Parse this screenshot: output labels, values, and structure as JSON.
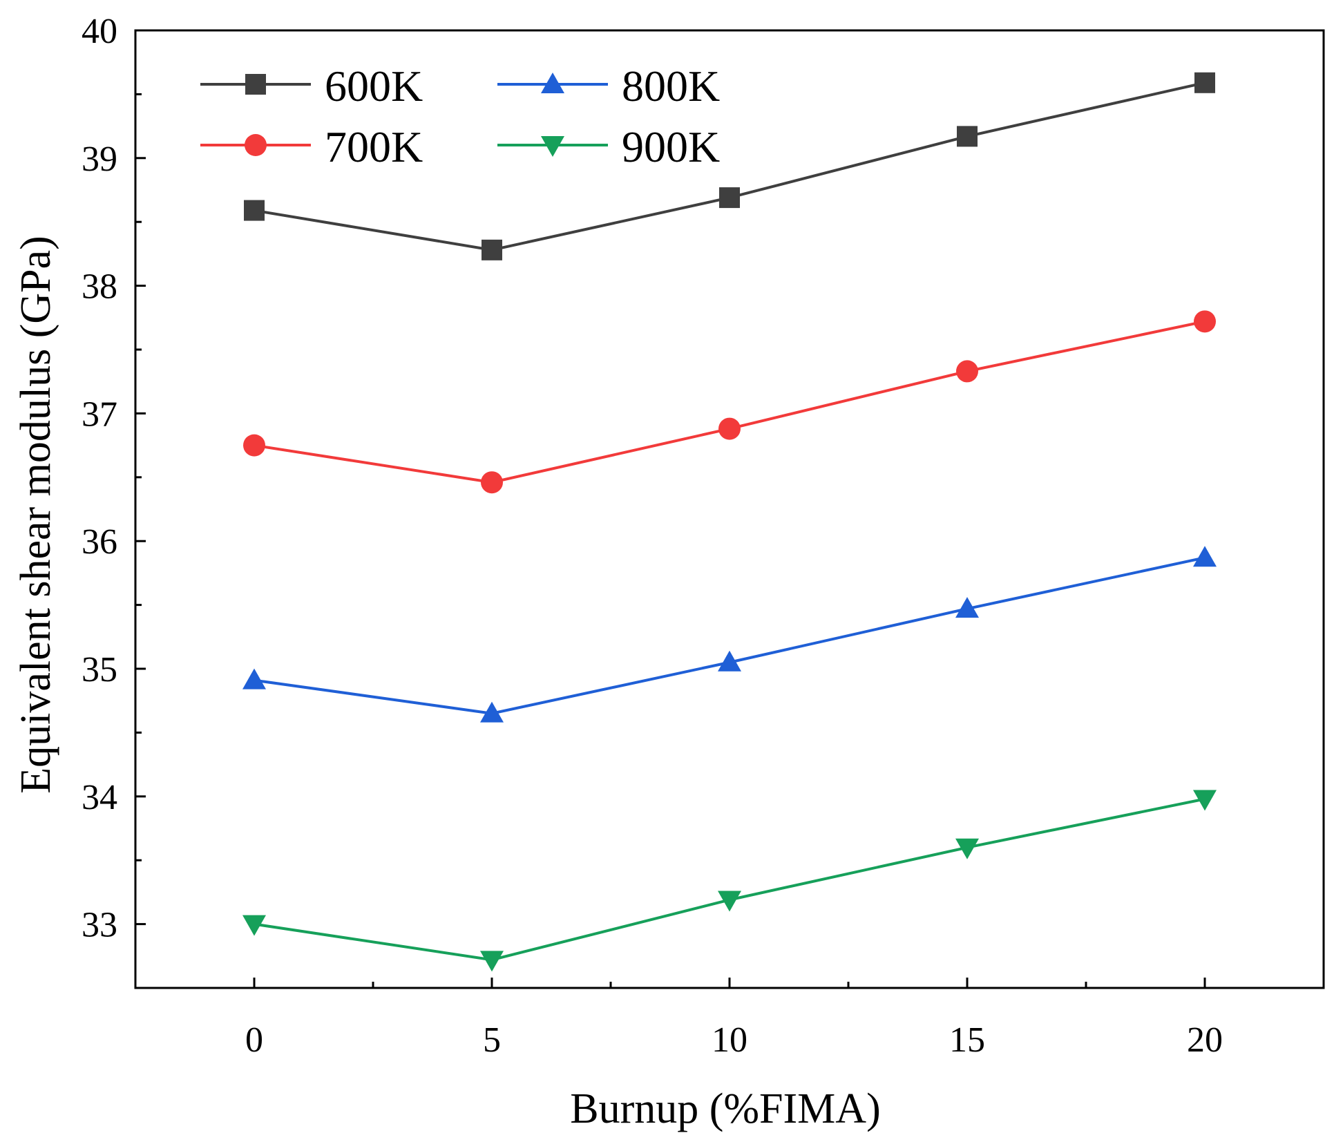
{
  "chart_data": {
    "type": "line",
    "title": "",
    "xlabel": "Burnup (%FIMA)",
    "ylabel": "Equivalent shear modulus (GPa)",
    "xlim": [
      -2.5,
      22.5
    ],
    "ylim": [
      32.5,
      40
    ],
    "xticks": [
      0,
      5,
      10,
      15,
      20
    ],
    "yticks": [
      33,
      34,
      35,
      36,
      37,
      38,
      39,
      40
    ],
    "x": [
      0,
      5,
      10,
      15,
      20
    ],
    "grid": false,
    "legend_position": "top-left",
    "series": [
      {
        "name": "600K",
        "color": "#3f3f3f",
        "marker": "square",
        "values": [
          38.59,
          38.28,
          38.69,
          39.17,
          39.59
        ]
      },
      {
        "name": "700K",
        "color": "#f23a3a",
        "marker": "circle",
        "values": [
          36.75,
          36.46,
          36.88,
          37.33,
          37.72
        ]
      },
      {
        "name": "800K",
        "color": "#1f5fd6",
        "marker": "triangle-up",
        "values": [
          34.91,
          34.65,
          35.05,
          35.47,
          35.87
        ]
      },
      {
        "name": "900K",
        "color": "#16a05a",
        "marker": "triangle-down",
        "values": [
          33.0,
          32.72,
          33.19,
          33.6,
          33.98
        ]
      }
    ]
  }
}
